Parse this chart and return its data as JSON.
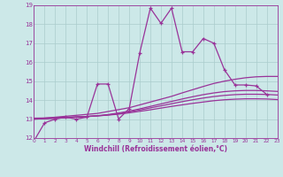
{
  "xlabel": "Windchill (Refroidissement éolien,°C)",
  "xlim": [
    0,
    23
  ],
  "ylim": [
    12,
    19
  ],
  "yticks": [
    12,
    13,
    14,
    15,
    16,
    17,
    18,
    19
  ],
  "xticks": [
    0,
    1,
    2,
    3,
    4,
    5,
    6,
    7,
    8,
    9,
    10,
    11,
    12,
    13,
    14,
    15,
    16,
    17,
    18,
    19,
    20,
    21,
    22,
    23
  ],
  "bg_color": "#cce8e8",
  "grid_color": "#aacccc",
  "line_color": "#993399",
  "series": {
    "jagged": {
      "x": [
        0,
        1,
        2,
        3,
        4,
        5,
        6,
        7,
        8,
        9,
        10,
        11,
        12,
        13,
        14,
        15,
        16,
        17,
        18,
        19,
        20,
        21,
        22
      ],
      "y": [
        11.85,
        12.8,
        13.0,
        13.1,
        13.0,
        13.1,
        14.85,
        14.85,
        13.0,
        13.55,
        16.5,
        18.85,
        18.05,
        18.85,
        16.55,
        16.55,
        17.25,
        17.0,
        15.6,
        14.8,
        14.8,
        14.75,
        14.3
      ]
    },
    "smooth1": {
      "x": [
        0,
        1,
        2,
        3,
        4,
        5,
        6,
        7,
        8,
        9,
        10,
        11,
        12,
        13,
        14,
        15,
        16,
        17,
        18,
        19,
        20,
        21,
        22,
        23
      ],
      "y": [
        13.0,
        13.05,
        13.1,
        13.15,
        13.2,
        13.25,
        13.3,
        13.4,
        13.5,
        13.6,
        13.75,
        13.9,
        14.05,
        14.2,
        14.38,
        14.55,
        14.72,
        14.88,
        15.0,
        15.1,
        15.18,
        15.23,
        15.25,
        15.25
      ]
    },
    "smooth2": {
      "x": [
        0,
        1,
        2,
        3,
        4,
        5,
        6,
        7,
        8,
        9,
        10,
        11,
        12,
        13,
        14,
        15,
        16,
        17,
        18,
        19,
        20,
        21,
        22,
        23
      ],
      "y": [
        13.0,
        13.02,
        13.05,
        13.08,
        13.11,
        13.14,
        13.18,
        13.24,
        13.32,
        13.42,
        13.54,
        13.67,
        13.8,
        13.93,
        14.06,
        14.18,
        14.29,
        14.38,
        14.45,
        14.49,
        14.51,
        14.51,
        14.49,
        14.46
      ]
    },
    "smooth3": {
      "x": [
        0,
        1,
        2,
        3,
        4,
        5,
        6,
        7,
        8,
        9,
        10,
        11,
        12,
        13,
        14,
        15,
        16,
        17,
        18,
        19,
        20,
        21,
        22,
        23
      ],
      "y": [
        13.0,
        13.02,
        13.04,
        13.07,
        13.1,
        13.13,
        13.17,
        13.22,
        13.29,
        13.38,
        13.48,
        13.59,
        13.7,
        13.81,
        13.92,
        14.02,
        14.11,
        14.19,
        14.25,
        14.29,
        14.31,
        14.31,
        14.3,
        14.27
      ]
    },
    "smooth4": {
      "x": [
        0,
        1,
        2,
        3,
        4,
        5,
        6,
        7,
        8,
        9,
        10,
        11,
        12,
        13,
        14,
        15,
        16,
        17,
        18,
        19,
        20,
        21,
        22,
        23
      ],
      "y": [
        13.05,
        13.06,
        13.08,
        13.1,
        13.12,
        13.14,
        13.17,
        13.21,
        13.26,
        13.33,
        13.41,
        13.49,
        13.58,
        13.67,
        13.75,
        13.83,
        13.9,
        13.97,
        14.02,
        14.05,
        14.07,
        14.07,
        14.06,
        14.03
      ]
    }
  }
}
